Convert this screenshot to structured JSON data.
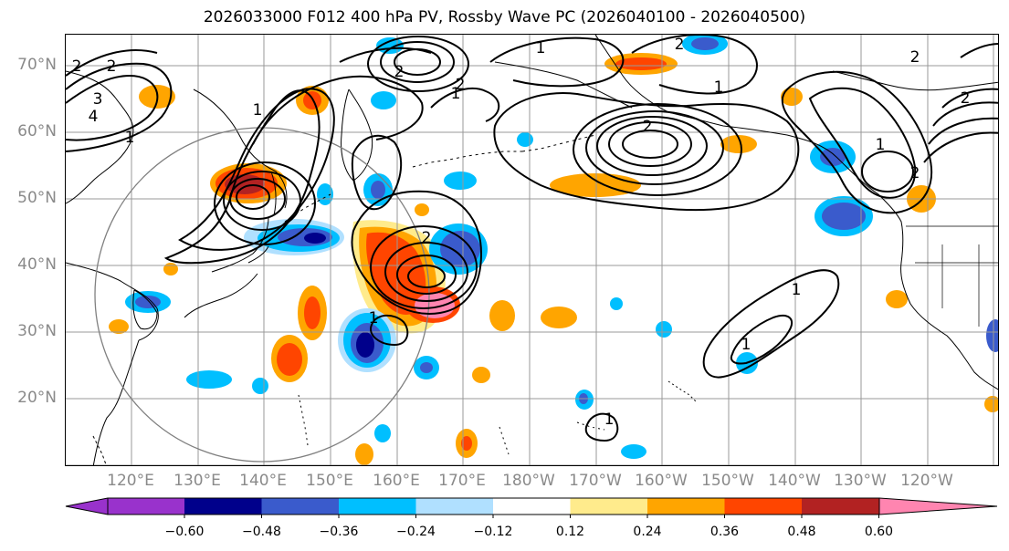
{
  "title": "2026033000 F012 400 hPa PV, Rossby Wave PC (2026040100 - 2026040500)",
  "latitude_labels": [
    "70°N",
    "60°N",
    "50°N",
    "40°N",
    "30°N",
    "20°N"
  ],
  "longitude_labels": [
    "120°E",
    "130°E",
    "140°E",
    "150°E",
    "160°E",
    "170°E",
    "180°W",
    "170°W",
    "160°W",
    "150°W",
    "140°W",
    "130°W",
    "120°W"
  ],
  "colorbar": {
    "ticks": [
      "−0.60",
      "−0.48",
      "−0.36",
      "−0.24",
      "−0.12",
      "0.12",
      "0.24",
      "0.36",
      "0.48",
      "0.60"
    ],
    "colors": [
      "#9932cc",
      "#00008b",
      "#3a5bcc",
      "#00bfff",
      "#b0e0ff",
      "#ffffff",
      "#ffeb8c",
      "#ffa500",
      "#ff4500",
      "#b22222",
      "#ff85b0"
    ]
  },
  "contour_labels": [
    "2",
    "2",
    "3",
    "4",
    "1",
    "1",
    "2",
    "1",
    "1",
    "2",
    "2",
    "2",
    "1",
    "2",
    "1",
    "1",
    "1",
    "1",
    "1",
    "2",
    "2",
    "2"
  ],
  "colors": {
    "contour": "#000000",
    "grid": "#999999",
    "coast": "#000000",
    "circle": "#808080"
  }
}
